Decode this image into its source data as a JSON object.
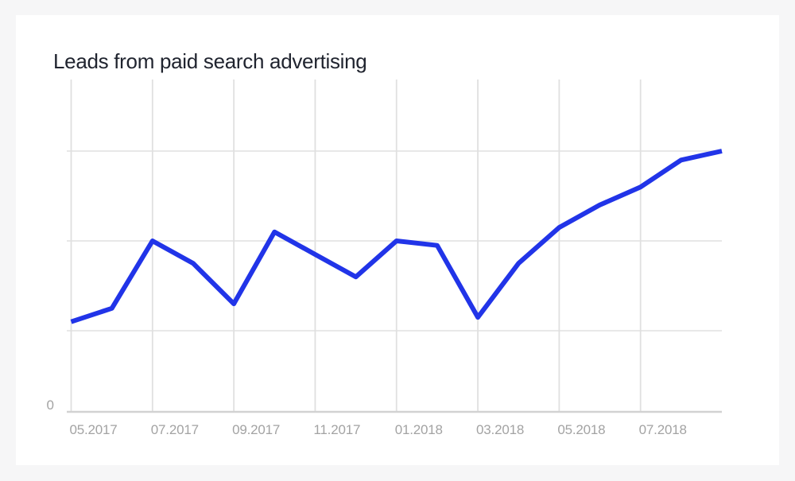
{
  "page": {
    "title": "Leads from paid search advertising"
  },
  "colors": {
    "background": "#f6f6f7",
    "card": "#ffffff",
    "grid": "#e0e0e0",
    "axis": "#d2d2d2",
    "tick_text": "#a3a3a3",
    "title_text": "#20242f",
    "line": "#2134e8"
  },
  "chart_data": {
    "type": "line",
    "title": "Leads from paid search advertising",
    "series_name": "Leads",
    "x": [
      "05.2017",
      "06.2017",
      "07.2017",
      "08.2017",
      "09.2017",
      "10.2017",
      "11.2017",
      "12.2017",
      "01.2018",
      "02.2018",
      "03.2018",
      "04.2018",
      "05.2018",
      "06.2018",
      "07.2018",
      "08.2018",
      "09.2018"
    ],
    "values": [
      110,
      125,
      200,
      175,
      130,
      210,
      185,
      160,
      200,
      195,
      115,
      175,
      215,
      240,
      260,
      290,
      300
    ],
    "x_tick_labels": [
      "05.2017",
      "07.2017",
      "09.2017",
      "11.2017",
      "01.2018",
      "03.2018",
      "05.2018",
      "07.2018"
    ],
    "y_tick_labels": [
      "0"
    ],
    "y_gridlines": [
      100,
      200,
      300
    ],
    "ylim": [
      0,
      380
    ],
    "xlabel": "",
    "ylabel": "",
    "grid": true,
    "legend": false,
    "line_color": "#2134e8"
  }
}
